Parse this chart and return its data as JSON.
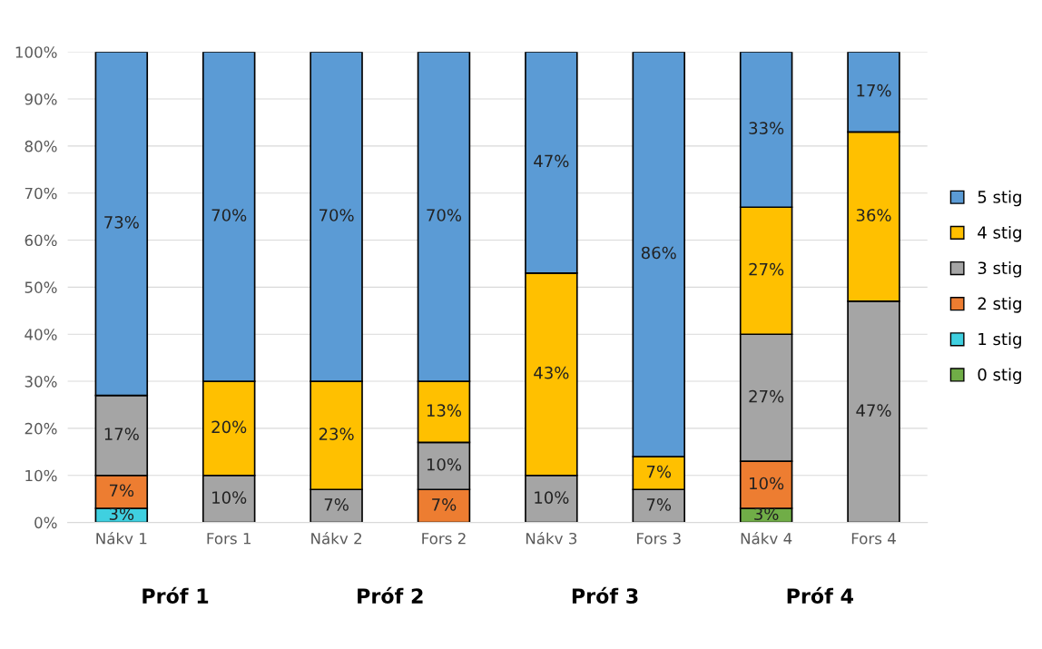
{
  "chart_data": {
    "type": "bar",
    "stacked": true,
    "categories": [
      "Nákv 1",
      "Fors 1",
      "Nákv 2",
      "Fors 2",
      "Nákv 3",
      "Fors 3",
      "Nákv 4",
      "Fors 4"
    ],
    "series": [
      {
        "name": "0 stig",
        "color": "#70ad47",
        "values": [
          null,
          null,
          null,
          null,
          null,
          null,
          3,
          null
        ],
        "value_labels": [
          null,
          null,
          null,
          null,
          null,
          null,
          "3%",
          null
        ]
      },
      {
        "name": "1 stig",
        "color": "#3fd0e0",
        "values": [
          3,
          null,
          null,
          null,
          null,
          null,
          null,
          null
        ],
        "value_labels": [
          "3%",
          null,
          null,
          null,
          null,
          null,
          null,
          null
        ]
      },
      {
        "name": "2 stig",
        "color": "#ed7d31",
        "values": [
          7,
          null,
          null,
          7,
          null,
          null,
          10,
          null
        ],
        "value_labels": [
          "7%",
          null,
          null,
          "7%",
          null,
          null,
          "10%",
          null
        ]
      },
      {
        "name": "3 stig",
        "color": "#a5a5a5",
        "values": [
          17,
          10,
          7,
          10,
          10,
          7,
          27,
          47
        ],
        "value_labels": [
          "17%",
          "10%",
          "7%",
          "10%",
          "10%",
          "7%",
          "27%",
          "47%"
        ]
      },
      {
        "name": "4 stig",
        "color": "#ffc000",
        "values": [
          null,
          20,
          23,
          13,
          43,
          7,
          27,
          36
        ],
        "value_labels": [
          null,
          "20%",
          "23%",
          "13%",
          "43%",
          "7%",
          "27%",
          "36%"
        ]
      },
      {
        "name": "5 stig",
        "color": "#5b9bd5",
        "values": [
          73,
          70,
          70,
          70,
          47,
          86,
          33,
          17
        ],
        "value_labels": [
          "73%",
          "70%",
          "70%",
          "70%",
          "47%",
          "86%",
          "33%",
          "17%"
        ]
      }
    ],
    "ylim": [
      0,
      100
    ],
    "yticks": [
      {
        "value": 0,
        "label": "0%"
      },
      {
        "value": 10,
        "label": "10%"
      },
      {
        "value": 20,
        "label": "20%"
      },
      {
        "value": 30,
        "label": "30%"
      },
      {
        "value": 40,
        "label": "40%"
      },
      {
        "value": 50,
        "label": "50%"
      },
      {
        "value": 60,
        "label": "60%"
      },
      {
        "value": 70,
        "label": "70%"
      },
      {
        "value": 80,
        "label": "80%"
      },
      {
        "value": 90,
        "label": "90%"
      },
      {
        "value": 100,
        "label": "100%"
      }
    ],
    "grid": "y",
    "legend": "right",
    "annotations": [
      "Próf 1",
      "Próf 2",
      "Próf 3",
      "Próf 4"
    ]
  }
}
